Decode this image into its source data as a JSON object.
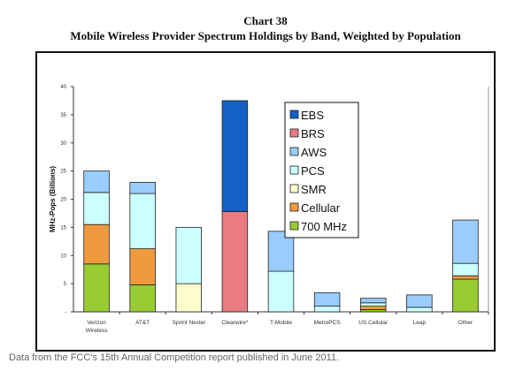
{
  "chart_data": {
    "type": "bar",
    "stacked": true,
    "title": "Chart 38",
    "subtitle": "Mobile Wireless Provider Spectrum Holdings by Band, Weighted by Population",
    "ylabel": "MHz-Pops (Billions)",
    "xlabel": "",
    "ylim": [
      0,
      40
    ],
    "yticks": [
      "-",
      "5",
      "10",
      "15",
      "20",
      "25",
      "30",
      "35",
      "40"
    ],
    "grid": false,
    "legend_position": "top-right",
    "categories": [
      "Verizon Wireless",
      "AT&T",
      "Sprint Nextel",
      "Clearwire*",
      "T-Mobile",
      "MetroPCS",
      "US Cellular",
      "Leap",
      "Other"
    ],
    "series": [
      {
        "name": "700 MHz",
        "color": "#99cc33",
        "values": [
          8.5,
          4.8,
          0,
          0,
          0,
          0,
          0.4,
          0,
          5.8
        ]
      },
      {
        "name": "Cellular",
        "color": "#f09a40",
        "values": [
          7.0,
          6.4,
          0,
          0,
          0,
          0,
          0.6,
          0,
          0.6
        ]
      },
      {
        "name": "SMR",
        "color": "#fdfccc",
        "values": [
          0,
          0,
          5.0,
          0,
          0,
          0,
          0,
          0,
          0
        ]
      },
      {
        "name": "PCS",
        "color": "#ccffff",
        "values": [
          5.7,
          9.8,
          10.0,
          0,
          7.2,
          1.0,
          0.6,
          0.8,
          2.2
        ]
      },
      {
        "name": "AWS",
        "color": "#99ccff",
        "values": [
          3.8,
          2.0,
          0,
          0,
          7.1,
          2.4,
          0.8,
          2.2,
          7.7
        ]
      },
      {
        "name": "BRS",
        "color": "#e87c80",
        "values": [
          0,
          0,
          0,
          17.8,
          0,
          0,
          0,
          0,
          0
        ]
      },
      {
        "name": "EBS",
        "color": "#1560c4",
        "values": [
          0,
          0,
          0,
          19.7,
          0,
          0,
          0,
          0,
          0
        ]
      }
    ],
    "legend_order": [
      "EBS",
      "BRS",
      "AWS",
      "PCS",
      "SMR",
      "Cellular",
      "700 MHz"
    ]
  },
  "source_note": "Data from the FCC's 15th Annual Competition report published in June 2011."
}
